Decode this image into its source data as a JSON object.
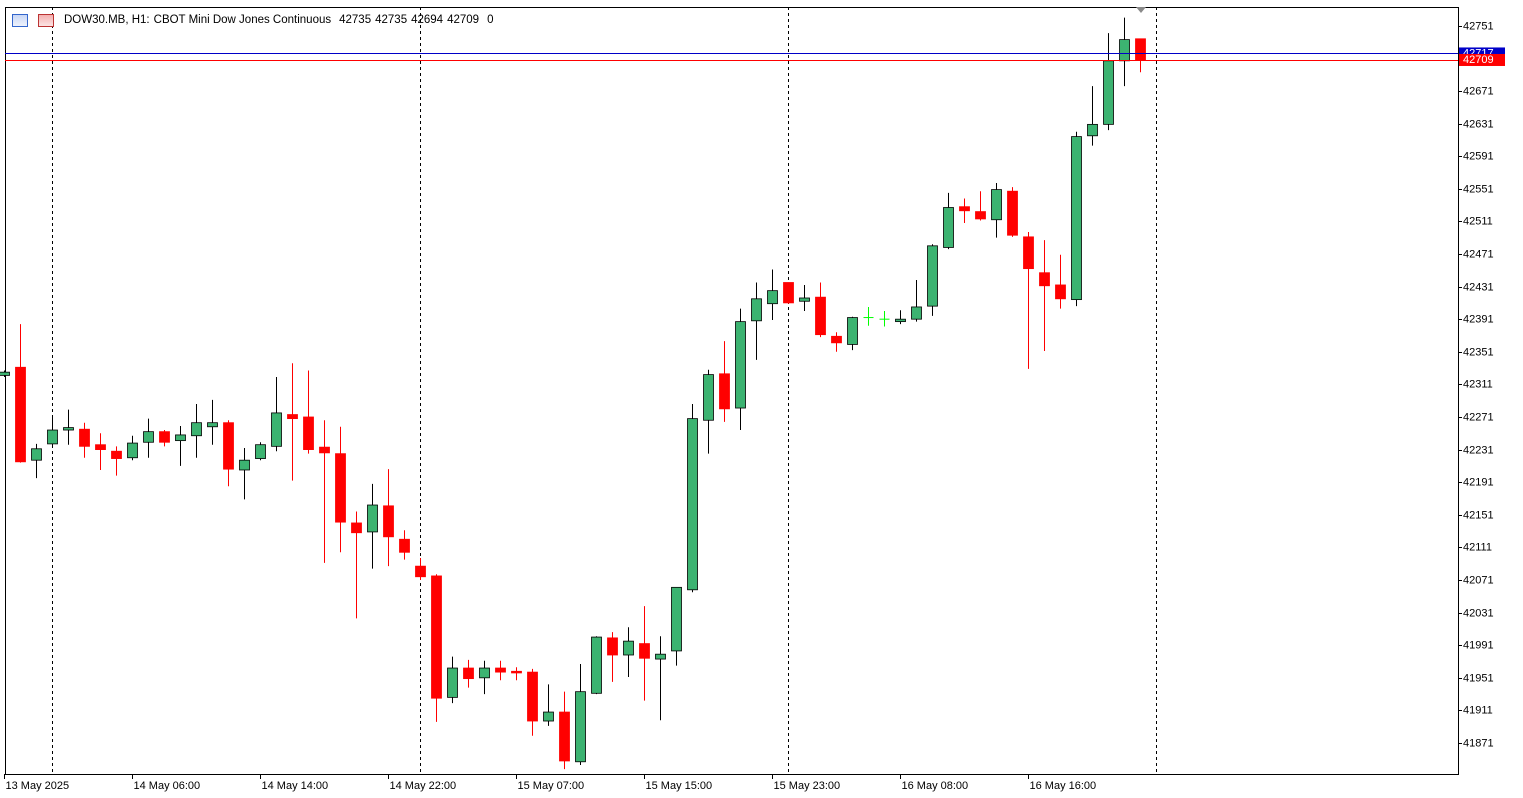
{
  "chart_data": {
    "type": "candlestick",
    "title": "DOW30.MB, H1:",
    "subtitle": "CBOT Mini Dow Jones Continuous",
    "volume": 0,
    "categories": [
      "13 May 2025",
      null,
      null,
      null,
      null,
      null,
      null,
      null,
      "14 May 06:00",
      null,
      null,
      null,
      null,
      null,
      null,
      null,
      "14 May 14:00",
      null,
      null,
      null,
      null,
      null,
      null,
      null,
      "14 May 22:00",
      null,
      null,
      null,
      null,
      null,
      null,
      null,
      "15 May 07:00",
      null,
      null,
      null,
      null,
      null,
      null,
      null,
      "15 May 15:00",
      null,
      null,
      null,
      null,
      null,
      null,
      null,
      "15 May 23:00",
      null,
      null,
      null,
      null,
      null,
      null,
      null,
      "16 May 08:00",
      null,
      null,
      null,
      null,
      null,
      null,
      null,
      "16 May 16:00",
      null,
      null,
      null,
      null,
      null,
      null,
      null
    ],
    "open": [
      42322,
      42332,
      42218,
      42238,
      42255,
      42256,
      42237,
      42229,
      42221,
      42240,
      42253,
      42242,
      42248,
      42259,
      42264,
      42206,
      42220,
      42235,
      42274,
      42271,
      42234,
      42226,
      42141,
      42130,
      42162,
      42121,
      42088,
      42076,
      41927,
      41963,
      41951,
      41963,
      41959,
      41958,
      41898,
      41909,
      41848,
      41932,
      42000,
      41979,
      41993,
      41974,
      41984,
      42059,
      42267,
      42324,
      42282,
      42389,
      42410,
      42436,
      42413,
      42418,
      42370,
      42360,
      42393,
      42391,
      42388,
      42391,
      42407,
      42479,
      42529,
      42523,
      42513,
      42548,
      42492,
      42448,
      42433,
      42415,
      42616,
      42630,
      42708,
      42735
    ],
    "high": [
      42328,
      42385,
      42238,
      42271,
      42280,
      42264,
      42251,
      42235,
      42248,
      42269,
      42255,
      42260,
      42287,
      42292,
      42267,
      42233,
      42240,
      42320,
      42337,
      42328,
      42267,
      42259,
      42155,
      42189,
      42207,
      42132,
      42098,
      42078,
      41977,
      41973,
      41972,
      41972,
      41964,
      41962,
      41943,
      41934,
      41968,
      42002,
      42007,
      42013,
      42039,
      42002,
      42062,
      42287,
      42329,
      42364,
      42404,
      42436,
      42452,
      42436,
      42433,
      42436,
      42375,
      42394,
      42406,
      42401,
      42402,
      42439,
      42483,
      42546,
      42539,
      42548,
      42558,
      42553,
      42498,
      42488,
      42470,
      42621,
      42677,
      42742,
      42761,
      42735
    ],
    "low": [
      42320,
      42215,
      42196,
      42235,
      42237,
      42221,
      42206,
      42199,
      42218,
      42221,
      42235,
      42211,
      42221,
      42237,
      42186,
      42170,
      42218,
      42229,
      42193,
      42226,
      42092,
      42105,
      42024,
      42085,
      42088,
      42096,
      42071,
      41897,
      41920,
      41939,
      41931,
      41948,
      41948,
      41880,
      41892,
      41839,
      41844,
      41931,
      41946,
      41952,
      41923,
      41899,
      41966,
      42056,
      42226,
      42265,
      42255,
      42341,
      42390,
      42410,
      42401,
      42369,
      42351,
      42353,
      42383,
      42382,
      42385,
      42388,
      42395,
      42477,
      42509,
      42512,
      42491,
      42492,
      42330,
      42352,
      42404,
      42407,
      42604,
      42623,
      42677,
      42694
    ],
    "close": [
      42326,
      42216,
      42232,
      42255,
      42258,
      42235,
      42231,
      42220,
      42239,
      42253,
      42240,
      42249,
      42264,
      42264,
      42207,
      42218,
      42237,
      42276,
      42269,
      42231,
      42227,
      42142,
      42129,
      42163,
      42124,
      42105,
      42075,
      41926,
      41963,
      41950,
      41963,
      41958,
      41957,
      41898,
      41909,
      41849,
      41934,
      42001,
      41979,
      41996,
      41975,
      41980,
      42062,
      42269,
      42323,
      42281,
      42388,
      42416,
      42426,
      42411,
      42417,
      42372,
      42362,
      42393,
      42393,
      42391,
      42391,
      42406,
      42481,
      42528,
      42524,
      42514,
      42550,
      42494,
      42453,
      42432,
      42416,
      42615,
      42630,
      42708,
      42734,
      42709
    ],
    "up_color": "#3cb371",
    "down_color": "#ff0000",
    "doji_color": "#00ff00",
    "separators": [
      3,
      26,
      49,
      72
    ],
    "price_lines": [
      {
        "value": 42717,
        "color": "#0000c8"
      },
      {
        "value": 42709,
        "color": "#ff0000"
      }
    ],
    "ylim": [
      41833,
      42774
    ],
    "yticks": [
      42751,
      42671,
      42631,
      42591,
      42551,
      42511,
      42471,
      42431,
      42391,
      42351,
      42311,
      42271,
      42231,
      42191,
      42151,
      42111,
      42071,
      42031,
      41991,
      41951,
      41911,
      41871
    ]
  }
}
